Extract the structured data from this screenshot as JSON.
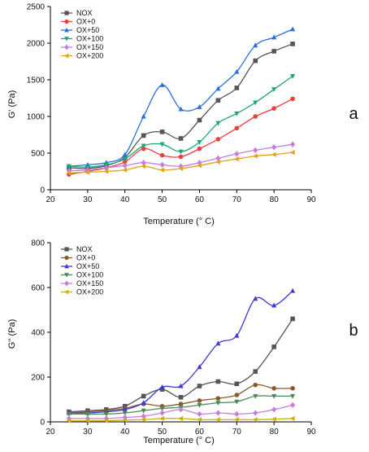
{
  "chart_data": [
    {
      "type": "line",
      "panel_label": "a",
      "title": "",
      "xlabel": "Temperature (° C)",
      "ylabel": "G' (Pa)",
      "xlim": [
        20,
        90
      ],
      "ylim": [
        0,
        2500
      ],
      "xticks": [
        20,
        30,
        40,
        50,
        60,
        70,
        80,
        90
      ],
      "yticks": [
        0,
        500,
        1000,
        1500,
        2000,
        2500
      ],
      "grid": false,
      "legend": "top-left",
      "x": [
        25,
        30,
        35,
        40,
        45,
        50,
        55,
        60,
        65,
        70,
        75,
        80,
        85
      ],
      "series": [
        {
          "name": "NOX",
          "color": "#555555",
          "marker": "square",
          "values": [
            300,
            290,
            330,
            440,
            740,
            790,
            700,
            950,
            1220,
            1390,
            1760,
            1890,
            1990
          ]
        },
        {
          "name": "OX+0",
          "color": "#e8403b",
          "marker": "circle",
          "values": [
            210,
            250,
            300,
            380,
            560,
            470,
            450,
            560,
            690,
            840,
            1000,
            1110,
            1240
          ]
        },
        {
          "name": "OX+50",
          "color": "#2a6fdb",
          "marker": "triangle-up",
          "values": [
            320,
            340,
            370,
            480,
            1000,
            1430,
            1100,
            1130,
            1380,
            1610,
            1970,
            2080,
            2190
          ]
        },
        {
          "name": "OX+100",
          "color": "#1fa67a",
          "marker": "triangle-down",
          "values": [
            320,
            310,
            340,
            420,
            600,
            620,
            520,
            650,
            910,
            1040,
            1190,
            1370,
            1550
          ]
        },
        {
          "name": "OX+150",
          "color": "#c77dde",
          "marker": "diamond",
          "values": [
            260,
            270,
            300,
            330,
            370,
            340,
            320,
            370,
            430,
            490,
            540,
            580,
            620
          ]
        },
        {
          "name": "OX+200",
          "color": "#e3a21a",
          "marker": "triangle-left",
          "values": [
            230,
            240,
            250,
            270,
            320,
            270,
            290,
            330,
            380,
            420,
            460,
            480,
            510
          ]
        }
      ]
    },
    {
      "type": "line",
      "panel_label": "b",
      "title": "",
      "xlabel": "Temperature (° C)",
      "ylabel": "G'' (Pa)",
      "xlim": [
        20,
        90
      ],
      "ylim": [
        0,
        800
      ],
      "xticks": [
        20,
        30,
        40,
        50,
        60,
        70,
        80,
        90
      ],
      "yticks": [
        0,
        200,
        400,
        600,
        800
      ],
      "grid": false,
      "legend": "top-left",
      "x": [
        25,
        30,
        35,
        40,
        45,
        50,
        55,
        60,
        65,
        70,
        75,
        80,
        85
      ],
      "series": [
        {
          "name": "NOX",
          "color": "#555555",
          "marker": "square",
          "values": [
            45,
            50,
            55,
            70,
            115,
            145,
            110,
            160,
            180,
            170,
            225,
            335,
            460
          ]
        },
        {
          "name": "OX+0",
          "color": "#8b5a2b",
          "marker": "circle",
          "values": [
            40,
            45,
            50,
            60,
            80,
            70,
            80,
            95,
            105,
            120,
            165,
            150,
            150
          ]
        },
        {
          "name": "OX+50",
          "color": "#3b3bd4",
          "marker": "triangle-up",
          "values": [
            40,
            40,
            45,
            55,
            85,
            155,
            160,
            245,
            350,
            385,
            550,
            520,
            585
          ]
        },
        {
          "name": "OX+100",
          "color": "#4d8a5a",
          "marker": "triangle-down",
          "values": [
            35,
            35,
            35,
            40,
            50,
            60,
            65,
            75,
            85,
            90,
            115,
            115,
            115
          ]
        },
        {
          "name": "OX+150",
          "color": "#c77dde",
          "marker": "diamond",
          "values": [
            15,
            15,
            15,
            20,
            25,
            40,
            55,
            35,
            40,
            35,
            40,
            55,
            75
          ]
        },
        {
          "name": "OX+200",
          "color": "#c9b10e",
          "marker": "triangle-left",
          "values": [
            5,
            5,
            5,
            8,
            10,
            15,
            15,
            10,
            10,
            10,
            10,
            12,
            15
          ]
        }
      ]
    }
  ]
}
